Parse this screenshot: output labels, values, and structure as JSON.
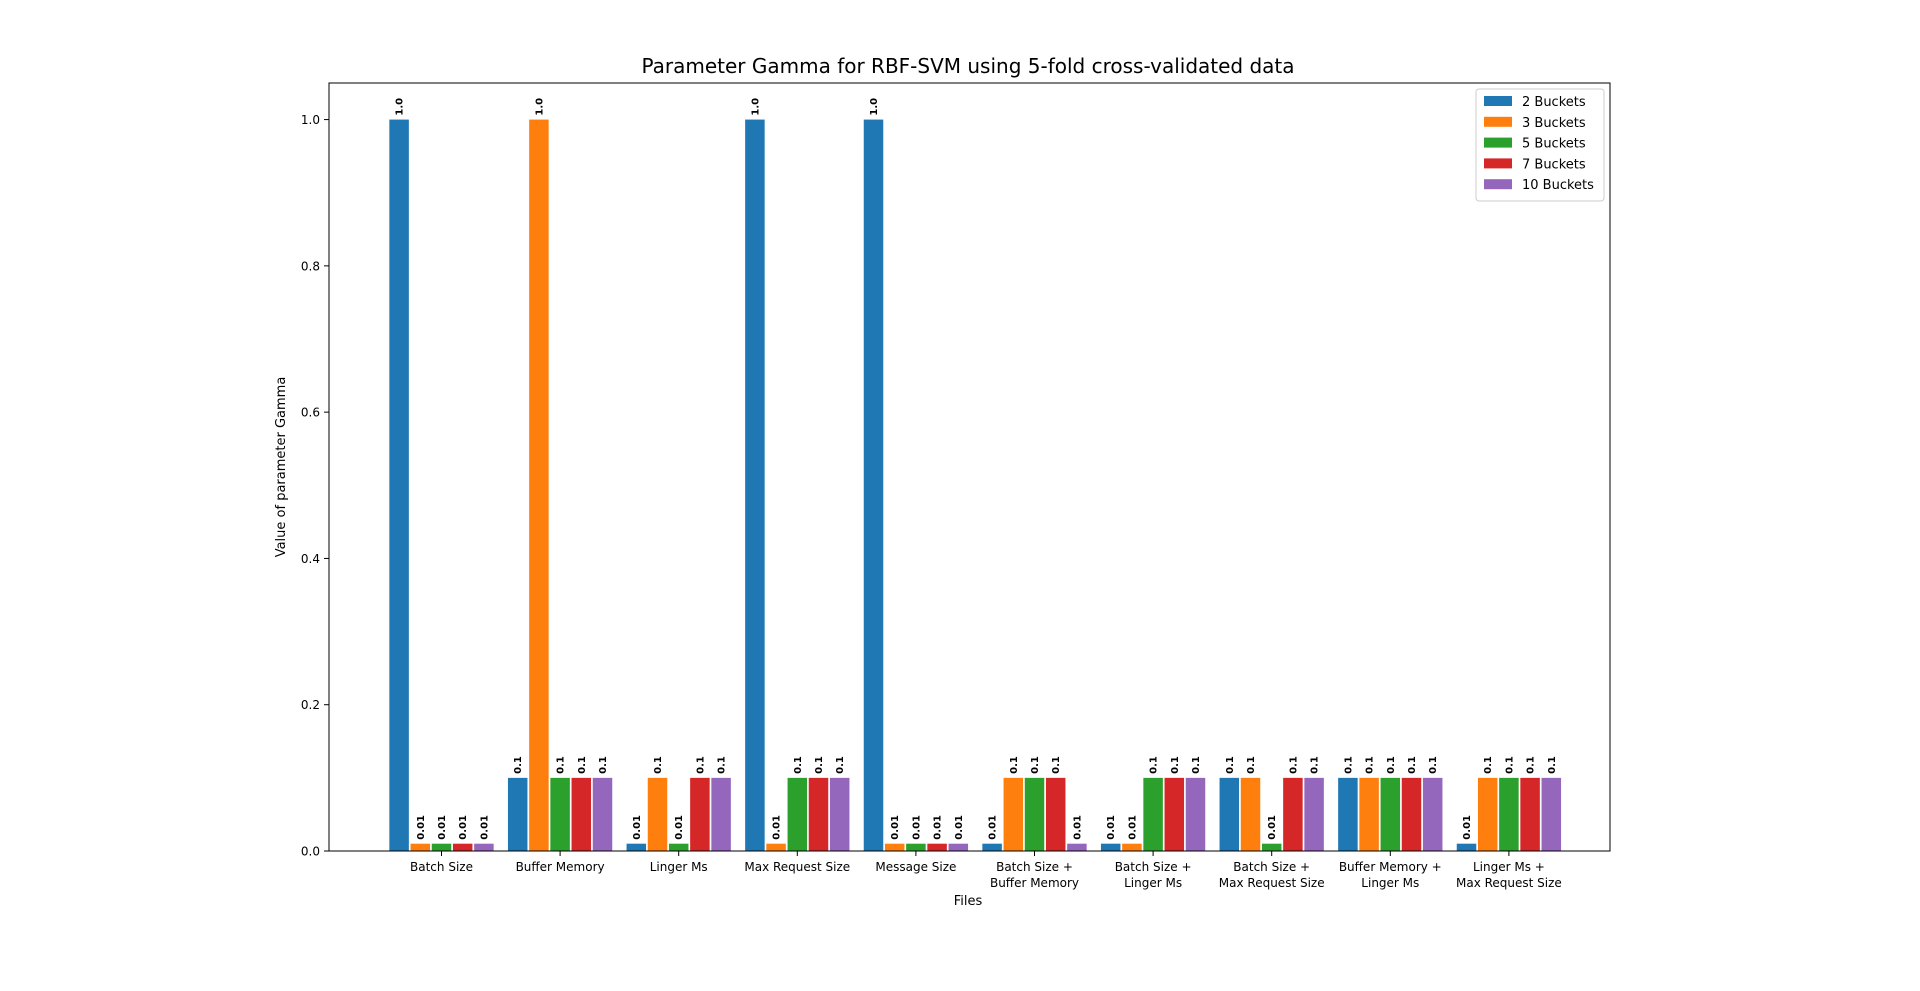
{
  "chart_data": {
    "type": "bar",
    "title": "Parameter Gamma for RBF-SVM using 5-fold cross-validated data",
    "xlabel": "Files",
    "ylabel": "Value of parameter Gamma",
    "ylim": [
      0,
      1.05
    ],
    "yticks": [
      "0.0",
      "0.2",
      "0.4",
      "0.6",
      "0.8",
      "1.0"
    ],
    "categories": [
      [
        "Batch Size"
      ],
      [
        "Buffer Memory"
      ],
      [
        "Linger Ms"
      ],
      [
        "Max Request Size"
      ],
      [
        "Message Size"
      ],
      [
        "Batch Size +",
        "Buffer Memory"
      ],
      [
        "Batch Size +",
        "Linger Ms"
      ],
      [
        "Batch Size +",
        "Max Request Size"
      ],
      [
        "Buffer Memory +",
        "Linger Ms"
      ],
      [
        "Linger Ms +",
        "Max Request Size"
      ]
    ],
    "series": [
      {
        "name": "2 Buckets",
        "color": "#1f77b4",
        "values": [
          1.0,
          0.1,
          0.01,
          1.0,
          1.0,
          0.01,
          0.01,
          0.1,
          0.1,
          0.01
        ]
      },
      {
        "name": "3 Buckets",
        "color": "#ff7f0e",
        "values": [
          0.01,
          1.0,
          0.1,
          0.01,
          0.01,
          0.1,
          0.01,
          0.1,
          0.1,
          0.1
        ]
      },
      {
        "name": "5 Buckets",
        "color": "#2ca02c",
        "values": [
          0.01,
          0.1,
          0.01,
          0.1,
          0.01,
          0.1,
          0.1,
          0.01,
          0.1,
          0.1
        ]
      },
      {
        "name": "7 Buckets",
        "color": "#d62728",
        "values": [
          0.01,
          0.1,
          0.1,
          0.1,
          0.01,
          0.1,
          0.1,
          0.1,
          0.1,
          0.1
        ]
      },
      {
        "name": "10 Buckets",
        "color": "#9467bd",
        "values": [
          0.01,
          0.1,
          0.1,
          0.1,
          0.01,
          0.01,
          0.1,
          0.1,
          0.1,
          0.1
        ]
      }
    ],
    "data_labels": [
      [
        "1.0",
        "0.1",
        "0.01",
        "1.0",
        "1.0",
        "0.01",
        "0.01",
        "0.1",
        "0.1",
        "0.01"
      ],
      [
        "0.01",
        "1.0",
        "0.1",
        "0.01",
        "0.01",
        "0.1",
        "0.01",
        "0.1",
        "0.1",
        "0.1"
      ],
      [
        "0.01",
        "0.1",
        "0.01",
        "0.1",
        "0.01",
        "0.1",
        "0.1",
        "0.01",
        "0.1",
        "0.1"
      ],
      [
        "0.01",
        "0.1",
        "0.1",
        "0.1",
        "0.01",
        "0.1",
        "0.1",
        "0.1",
        "0.1",
        "0.1"
      ],
      [
        "0.01",
        "0.1",
        "0.1",
        "0.1",
        "0.01",
        "0.01",
        "0.1",
        "0.1",
        "0.1",
        "0.1"
      ]
    ],
    "legend_position": "top-right",
    "grid": false
  }
}
